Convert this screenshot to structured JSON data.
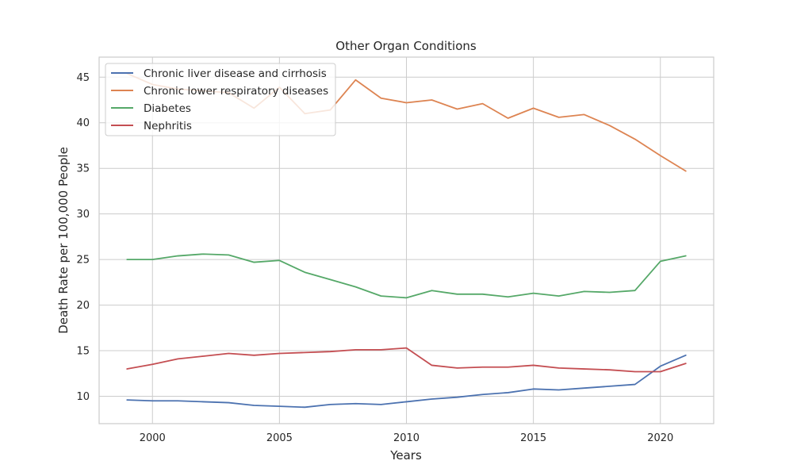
{
  "chart_data": {
    "type": "line",
    "title": "Other Organ Conditions",
    "xlabel": "Years",
    "ylabel": "Death Rate per 100,000 People",
    "xlim": [
      1997.9,
      2022.1
    ],
    "ylim": [
      7.0,
      47.2
    ],
    "xticks": [
      2000,
      2005,
      2010,
      2015,
      2020
    ],
    "yticks": [
      10,
      15,
      20,
      25,
      30,
      35,
      40,
      45
    ],
    "grid": true,
    "legend_position": "top-left",
    "x": [
      1999,
      2000,
      2001,
      2002,
      2003,
      2004,
      2005,
      2006,
      2007,
      2008,
      2009,
      2010,
      2011,
      2012,
      2013,
      2014,
      2015,
      2016,
      2017,
      2018,
      2019,
      2020,
      2021
    ],
    "series": [
      {
        "name": "Chronic liver disease and cirrhosis",
        "color": "#4c72b0",
        "values": [
          9.6,
          9.5,
          9.5,
          9.4,
          9.3,
          9.0,
          8.9,
          8.8,
          9.1,
          9.2,
          9.1,
          9.4,
          9.7,
          9.9,
          10.2,
          10.4,
          10.8,
          10.7,
          10.9,
          11.1,
          11.3,
          13.3,
          14.5
        ]
      },
      {
        "name": "Chronic lower respiratory diseases",
        "color": "#dd8452",
        "values": [
          45.4,
          44.2,
          43.7,
          43.5,
          43.3,
          41.6,
          43.9,
          41.0,
          41.4,
          44.7,
          42.7,
          42.2,
          42.5,
          41.5,
          42.1,
          40.5,
          41.6,
          40.6,
          40.9,
          39.7,
          38.2,
          36.4,
          34.7
        ]
      },
      {
        "name": "Diabetes",
        "color": "#55a868",
        "values": [
          25.0,
          25.0,
          25.4,
          25.6,
          25.5,
          24.7,
          24.9,
          23.6,
          22.8,
          22.0,
          21.0,
          20.8,
          21.6,
          21.2,
          21.2,
          20.9,
          21.3,
          21.0,
          21.5,
          21.4,
          21.6,
          24.8,
          25.4
        ]
      },
      {
        "name": "Nephritis",
        "color": "#c44e52",
        "values": [
          13.0,
          13.5,
          14.1,
          14.4,
          14.7,
          14.5,
          14.7,
          14.8,
          14.9,
          15.1,
          15.1,
          15.3,
          13.4,
          13.1,
          13.2,
          13.2,
          13.4,
          13.1,
          13.0,
          12.9,
          12.7,
          12.7,
          13.6
        ]
      }
    ]
  }
}
